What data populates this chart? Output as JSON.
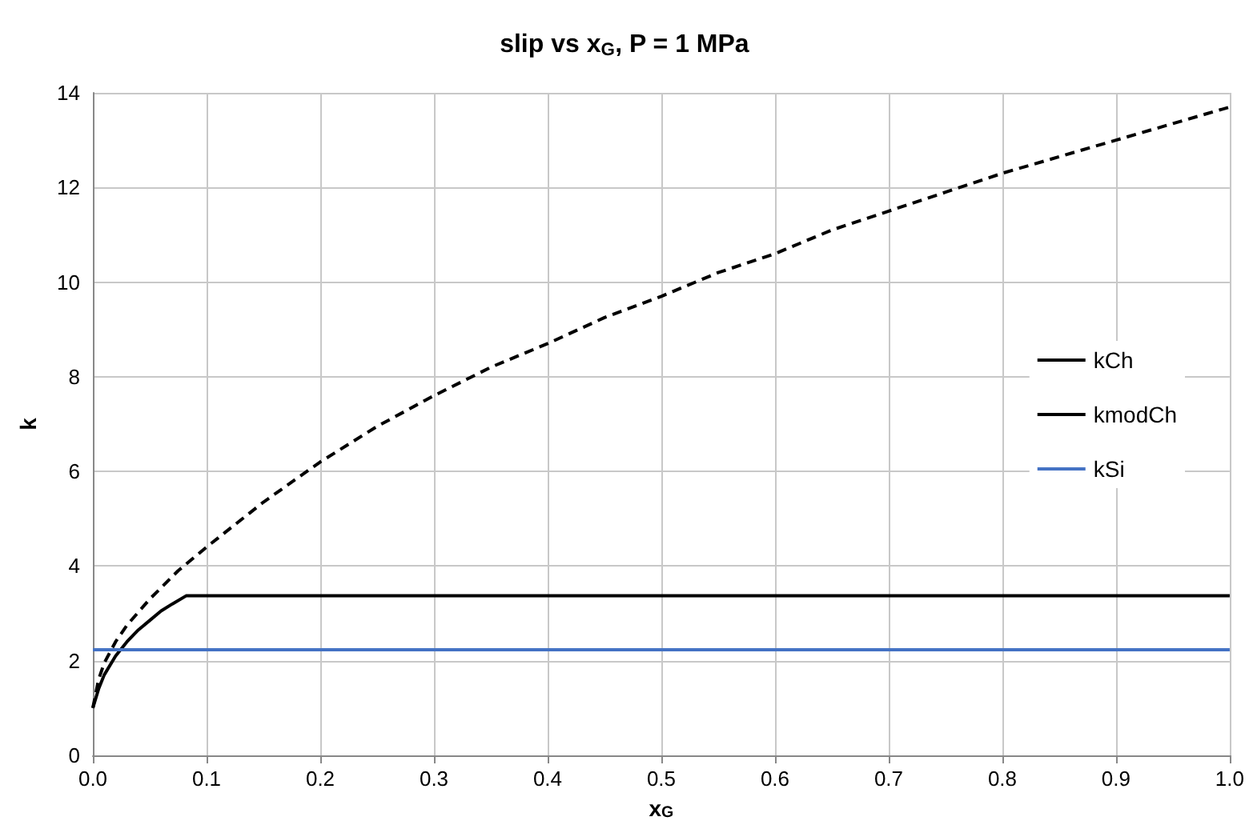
{
  "chart_data": {
    "type": "line",
    "title": "slip vs x$_{G}$, P = 1 MPa",
    "xlabel": "x$_{G}$",
    "ylabel": "k",
    "xlim": [
      0,
      1
    ],
    "xticks": [
      {
        "value": 0,
        "label": "0.0"
      },
      {
        "value": 0.1,
        "label": "0.1"
      },
      {
        "value": 0.2,
        "label": "0.2"
      },
      {
        "value": 0.3,
        "label": "0.3"
      },
      {
        "value": 0.4,
        "label": "0.4"
      },
      {
        "value": 0.5,
        "label": "0.5"
      },
      {
        "value": 0.6,
        "label": "0.6"
      },
      {
        "value": 0.7,
        "label": "0.7"
      },
      {
        "value": 0.8,
        "label": "0.8"
      },
      {
        "value": 0.9,
        "label": "0.9"
      },
      {
        "value": 1,
        "label": "1.0"
      }
    ],
    "ylim": [
      0,
      14
    ],
    "yticks": [
      0,
      2,
      4,
      6,
      8,
      10,
      12,
      14
    ],
    "grid": true,
    "legend": "right",
    "marker": "none",
    "series": [
      {
        "name": "kCh",
        "color": "#000000",
        "line_style": "solid",
        "x": [
          0,
          0.005,
          0.01,
          0.02,
          0.03,
          0.04,
          0.05,
          0.06,
          0.07,
          0.082,
          1
        ],
        "values": [
          1.0,
          1.4,
          1.7,
          2.1,
          2.4,
          2.65,
          2.85,
          3.05,
          3.2,
          3.37,
          3.37
        ]
      },
      {
        "name": "kmodCh",
        "color": "#000000",
        "line_style": "dashed",
        "x": [
          0,
          0.005,
          0.01,
          0.02,
          0.03,
          0.05,
          0.075,
          0.1,
          0.15,
          0.2,
          0.25,
          0.3,
          0.35,
          0.4,
          0.45,
          0.5,
          0.55,
          0.6,
          0.65,
          0.7,
          0.75,
          0.8,
          0.85,
          0.9,
          0.95,
          1
        ],
        "values": [
          1.0,
          1.6,
          1.95,
          2.4,
          2.75,
          3.3,
          3.9,
          4.4,
          5.35,
          6.2,
          6.95,
          7.6,
          8.2,
          8.7,
          9.25,
          9.7,
          10.2,
          10.6,
          11.1,
          11.5,
          11.9,
          12.3,
          12.65,
          13.0,
          13.35,
          13.7
        ]
      },
      {
        "name": "kSi",
        "color": "#4472c4",
        "line_style": "solid",
        "x": [
          0,
          1
        ],
        "values": [
          2.23,
          2.23
        ]
      }
    ]
  }
}
